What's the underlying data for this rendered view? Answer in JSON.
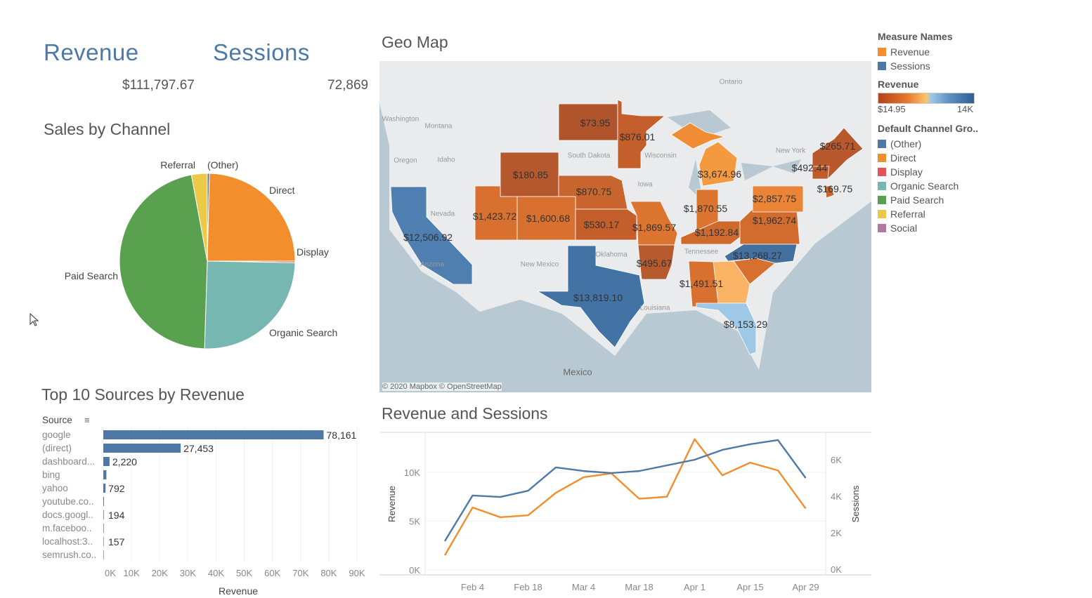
{
  "kpis": {
    "revenue_title": "Revenue",
    "revenue_value": "$111,797.67",
    "sessions_title": "Sessions",
    "sessions_value": "72,869"
  },
  "sections": {
    "sales_by_channel": "Sales by Channel",
    "geo_map": "Geo Map",
    "top_sources": "Top 10 Sources by Revenue",
    "rev_sessions": "Revenue and Sessions"
  },
  "legend": {
    "measure_title": "Measure Names",
    "measures": [
      {
        "label": "Revenue",
        "color": "#f28e2b"
      },
      {
        "label": "Sessions",
        "color": "#4e79a7"
      }
    ],
    "revenue_title": "Revenue",
    "revenue_min": "$14.95",
    "revenue_max": "14K",
    "channel_title": "Default Channel Gro..",
    "channels": [
      {
        "label": "(Other)",
        "color": "#4e79a7"
      },
      {
        "label": "Direct",
        "color": "#f28e2b"
      },
      {
        "label": "Display",
        "color": "#e15759"
      },
      {
        "label": "Organic Search",
        "color": "#76b7b2"
      },
      {
        "label": "Paid Search",
        "color": "#59a14f"
      },
      {
        "label": "Referral",
        "color": "#edc948"
      },
      {
        "label": "Social",
        "color": "#b07aa1"
      }
    ]
  },
  "map": {
    "attribution": "© 2020 Mapbox © OpenStreetMap",
    "place_labels": [
      "Ontario",
      "Washington",
      "Montana",
      "Oregon",
      "Idaho",
      "South Dakota",
      "Wisconsin",
      "Iowa",
      "Nevada",
      "Arizona",
      "New Mexico",
      "Oklahoma",
      "Tennessee",
      "Louisiana",
      "New York",
      "Mexico"
    ],
    "states": [
      {
        "id": "ND",
        "label": "$73.95",
        "color": "#b0542b"
      },
      {
        "id": "MN",
        "label": "$876.01",
        "color": "#c45f2c"
      },
      {
        "id": "WY",
        "label": "$180.85",
        "color": "#b5582e"
      },
      {
        "id": "NE",
        "label": "$870.75",
        "color": "#c9652f"
      },
      {
        "id": "UT",
        "label": "$1,423.72",
        "color": "#d8712f"
      },
      {
        "id": "CO",
        "label": "$1,600.68",
        "color": "#d8712f"
      },
      {
        "id": "KS",
        "label": "$530.17",
        "color": "#c45f2c"
      },
      {
        "id": "MO",
        "label": "$1,869.57",
        "color": "#dc7530"
      },
      {
        "id": "AR",
        "label": "$495.67",
        "color": "#b75a2d"
      },
      {
        "id": "CA",
        "label": "$12,506.92",
        "color": "#4f7eb0"
      },
      {
        "id": "TX",
        "label": "$13,819.10",
        "color": "#4373a5"
      },
      {
        "id": "MI_UP",
        "label": "",
        "color": "#f08c33"
      },
      {
        "id": "MI",
        "label": "$3,674.96",
        "color": "#f3993f"
      },
      {
        "id": "IN",
        "label": "$1,870.55",
        "color": "#dc7530"
      },
      {
        "id": "KY",
        "label": "$1,192.84",
        "color": "#cf6a2e"
      },
      {
        "id": "VA",
        "label": "$1,962.74",
        "color": "#d16b2e"
      },
      {
        "id": "PA",
        "label": "$2,857.75",
        "color": "#ea8436"
      },
      {
        "id": "NC",
        "label": "$13,268.27",
        "color": "#44709f"
      },
      {
        "id": "SC",
        "label": "",
        "color": "#d7702f"
      },
      {
        "id": "GA",
        "label": "",
        "color": "#fab365"
      },
      {
        "id": "AL",
        "label": "$1,491.51",
        "color": "#d8712f"
      },
      {
        "id": "FL",
        "label": "$8,153.29",
        "color": "#9fc8e6"
      },
      {
        "id": "NE_US",
        "label": "$265.71",
        "color": "#b9582c"
      },
      {
        "id": "NY_S",
        "label": "$492.44",
        "color": "#c05c2c"
      },
      {
        "id": "NJ",
        "label": "$169.75",
        "color": "#c8642e"
      }
    ]
  },
  "chart_data": [
    {
      "type": "pie",
      "title": "Sales by Channel",
      "categories": [
        "(Other)",
        "Direct",
        "Display",
        "Organic Search",
        "Paid Search",
        "Referral"
      ],
      "values": [
        0.4,
        24.6,
        0.3,
        25.2,
        46.6,
        2.9
      ],
      "colors": [
        "#4e79a7",
        "#f28e2b",
        "#e15759",
        "#76b7b2",
        "#59a14f",
        "#edc948"
      ]
    },
    {
      "type": "bar",
      "title": "Top 10 Sources by Revenue",
      "ylabel": "Source",
      "xlabel": "Revenue",
      "categories": [
        "google",
        "(direct)",
        "dashboard...",
        "bing",
        "yahoo",
        "youtube.co..",
        "docs.googl..",
        "m.faceboo..",
        "localhost:3..",
        "semrush.co.."
      ],
      "values": [
        78161,
        27453,
        2220,
        1100,
        792,
        250,
        194,
        180,
        157,
        120
      ],
      "value_labels": [
        "78,161",
        "27,453",
        "2,220",
        "",
        "792",
        "",
        "194",
        "",
        "157",
        ""
      ],
      "xticks": [
        "0K",
        "10K",
        "20K",
        "30K",
        "40K",
        "50K",
        "60K",
        "70K",
        "80K",
        "90K"
      ],
      "xlim": [
        0,
        90000
      ],
      "color": "#4e79a7"
    },
    {
      "type": "line",
      "title": "Revenue and Sessions",
      "x": [
        "Jan 28",
        "Feb 4",
        "Feb 11",
        "Feb 18",
        "Feb 25",
        "Mar 4",
        "Mar 11",
        "Mar 18",
        "Mar 25",
        "Apr 1",
        "Apr 8",
        "Apr 15",
        "Apr 22",
        "Apr 29"
      ],
      "xticks": [
        "Feb 4",
        "Feb 18",
        "Mar 4",
        "Mar 18",
        "Apr 1",
        "Apr 15",
        "Apr 29"
      ],
      "series": [
        {
          "name": "Revenue",
          "axis": "left",
          "color": "#f28e2b",
          "values": [
            1500,
            6400,
            5400,
            5600,
            7900,
            9500,
            9900,
            7300,
            7500,
            13400,
            9700,
            11000,
            10200,
            6300
          ]
        },
        {
          "name": "Sessions",
          "axis": "right",
          "color": "#4e79a7",
          "values": [
            1540,
            4040,
            3960,
            4300,
            5580,
            5380,
            5270,
            5380,
            5690,
            6000,
            6540,
            6850,
            7080,
            5000
          ]
        }
      ],
      "ylabel_left": "Revenue",
      "ylabel_right": "Sessions",
      "yticks_left": [
        "0K",
        "5K",
        "10K"
      ],
      "yticks_right": [
        "0K",
        "2K",
        "4K",
        "6K"
      ],
      "ylim_left": [
        0,
        14000
      ],
      "ylim_right": [
        0,
        7500
      ]
    }
  ]
}
